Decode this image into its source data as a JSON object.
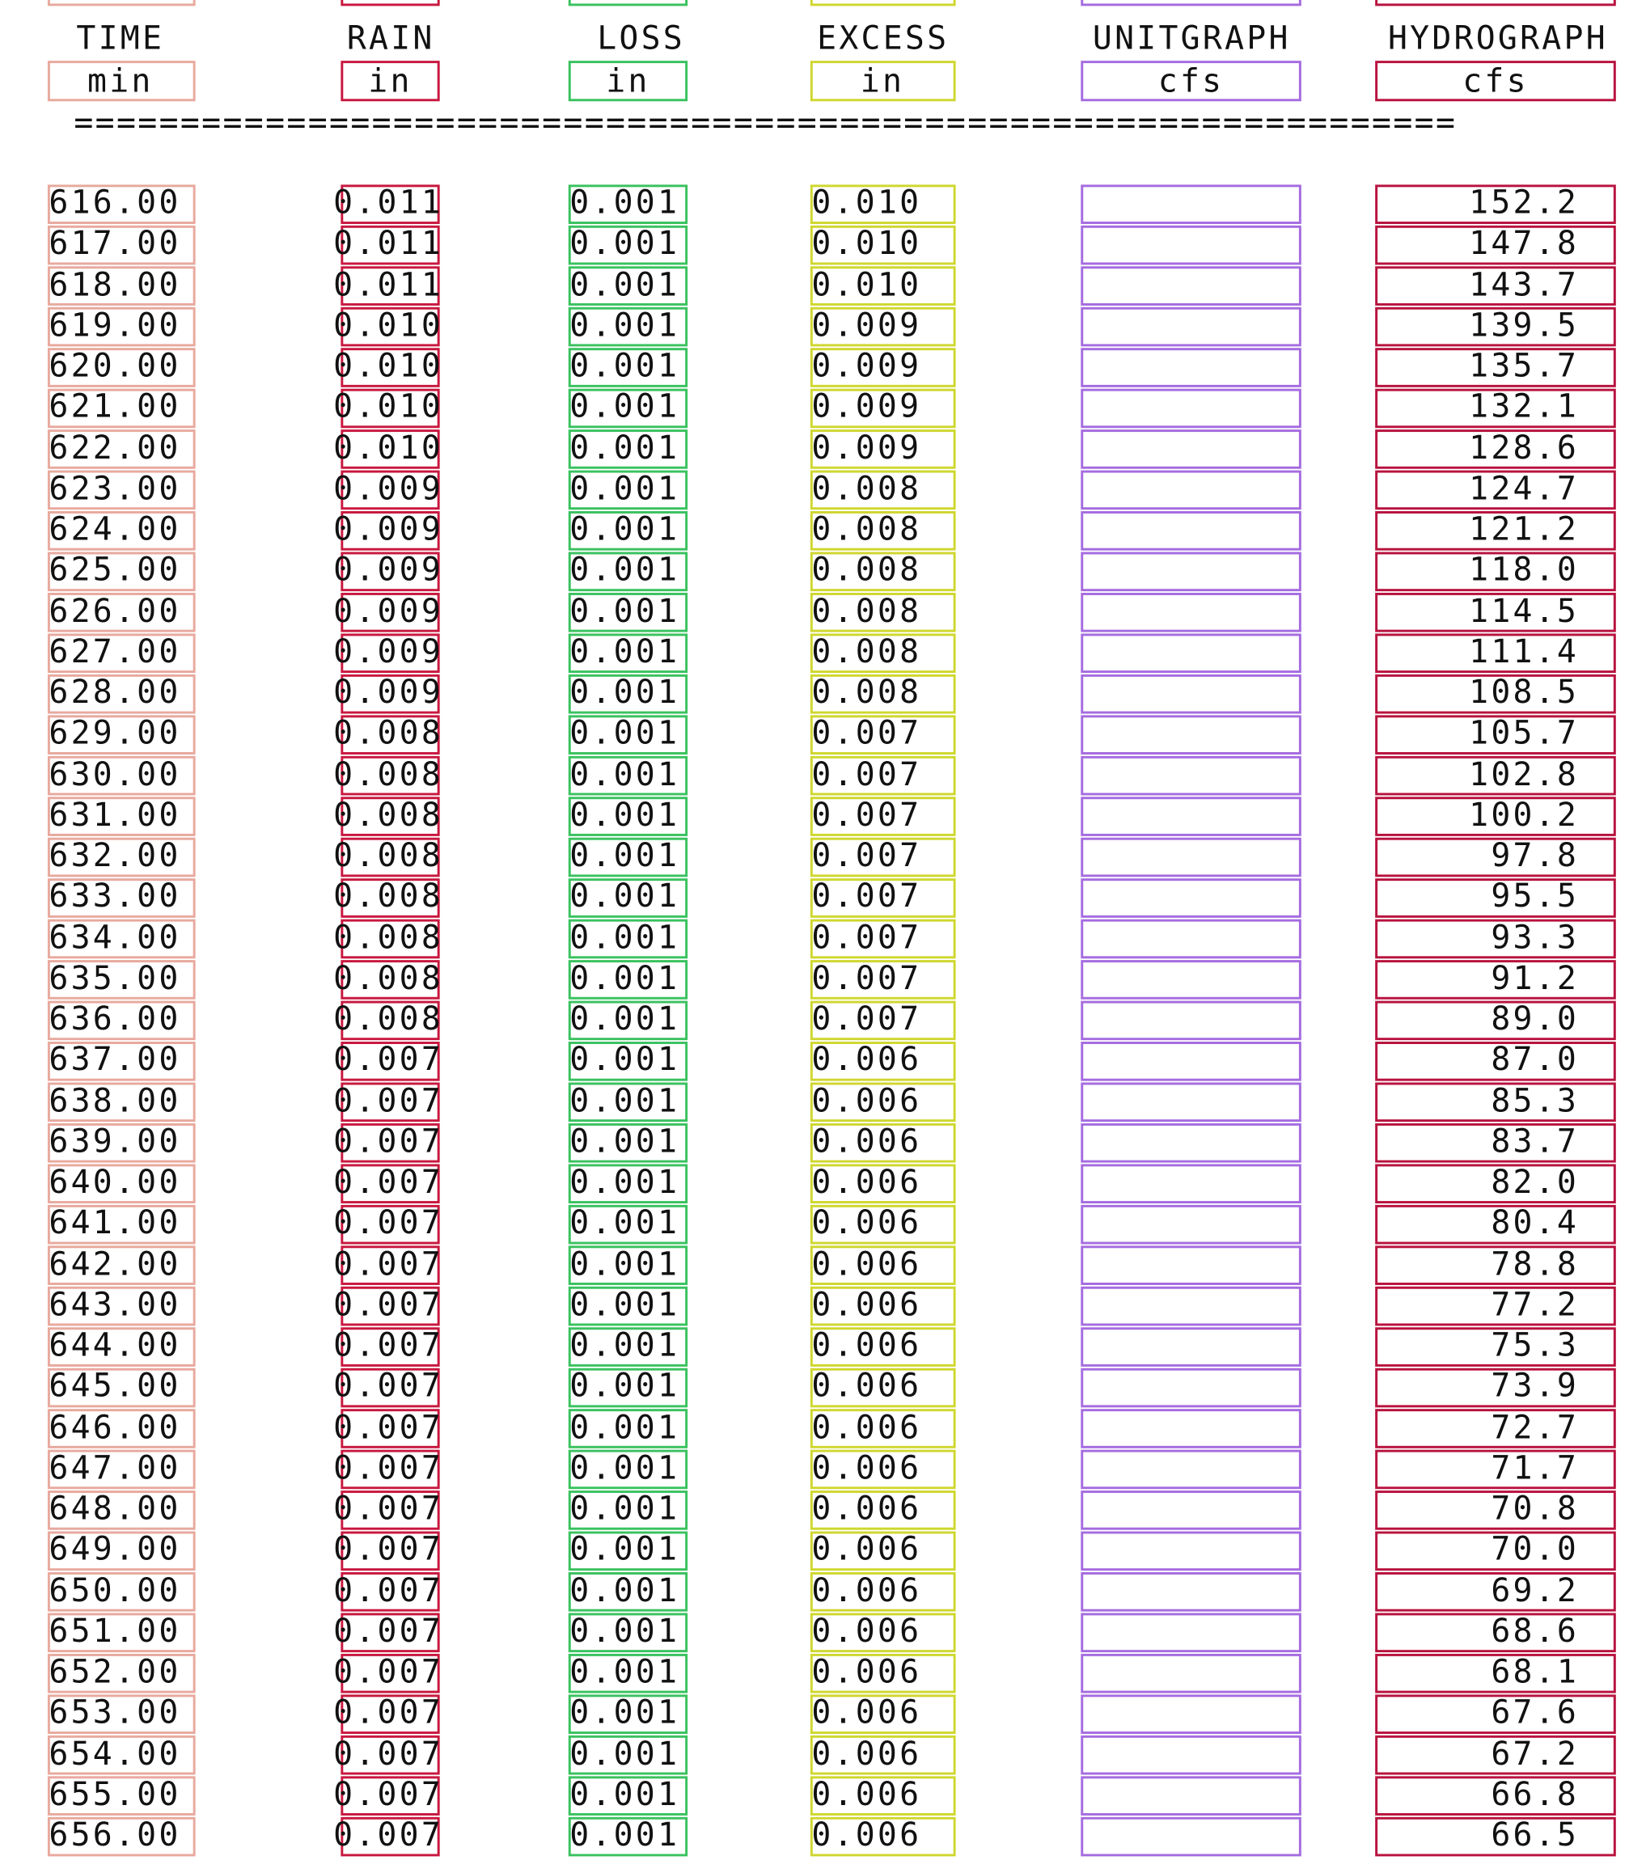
{
  "headers": {
    "time": "TIME",
    "rain": "RAIN",
    "loss": "LOSS",
    "excess": "EXCESS",
    "unitgraph": "UNITGRAPH",
    "hydrograph": "HYDROGRAPH"
  },
  "units": {
    "time": "min",
    "rain": "in",
    "loss": "in",
    "excess": "in",
    "unitgraph": "cfs",
    "hydrograph": "cfs"
  },
  "separator": "=================================================================",
  "rows": [
    {
      "time": "616.00",
      "rain": "0.011",
      "loss": "0.001",
      "excess": "0.010",
      "unitgraph": "",
      "hydrograph": "152.2"
    },
    {
      "time": "617.00",
      "rain": "0.011",
      "loss": "0.001",
      "excess": "0.010",
      "unitgraph": "",
      "hydrograph": "147.8"
    },
    {
      "time": "618.00",
      "rain": "0.011",
      "loss": "0.001",
      "excess": "0.010",
      "unitgraph": "",
      "hydrograph": "143.7"
    },
    {
      "time": "619.00",
      "rain": "0.010",
      "loss": "0.001",
      "excess": "0.009",
      "unitgraph": "",
      "hydrograph": "139.5"
    },
    {
      "time": "620.00",
      "rain": "0.010",
      "loss": "0.001",
      "excess": "0.009",
      "unitgraph": "",
      "hydrograph": "135.7"
    },
    {
      "time": "621.00",
      "rain": "0.010",
      "loss": "0.001",
      "excess": "0.009",
      "unitgraph": "",
      "hydrograph": "132.1"
    },
    {
      "time": "622.00",
      "rain": "0.010",
      "loss": "0.001",
      "excess": "0.009",
      "unitgraph": "",
      "hydrograph": "128.6"
    },
    {
      "time": "623.00",
      "rain": "0.009",
      "loss": "0.001",
      "excess": "0.008",
      "unitgraph": "",
      "hydrograph": "124.7"
    },
    {
      "time": "624.00",
      "rain": "0.009",
      "loss": "0.001",
      "excess": "0.008",
      "unitgraph": "",
      "hydrograph": "121.2"
    },
    {
      "time": "625.00",
      "rain": "0.009",
      "loss": "0.001",
      "excess": "0.008",
      "unitgraph": "",
      "hydrograph": "118.0"
    },
    {
      "time": "626.00",
      "rain": "0.009",
      "loss": "0.001",
      "excess": "0.008",
      "unitgraph": "",
      "hydrograph": "114.5"
    },
    {
      "time": "627.00",
      "rain": "0.009",
      "loss": "0.001",
      "excess": "0.008",
      "unitgraph": "",
      "hydrograph": "111.4"
    },
    {
      "time": "628.00",
      "rain": "0.009",
      "loss": "0.001",
      "excess": "0.008",
      "unitgraph": "",
      "hydrograph": "108.5"
    },
    {
      "time": "629.00",
      "rain": "0.008",
      "loss": "0.001",
      "excess": "0.007",
      "unitgraph": "",
      "hydrograph": "105.7"
    },
    {
      "time": "630.00",
      "rain": "0.008",
      "loss": "0.001",
      "excess": "0.007",
      "unitgraph": "",
      "hydrograph": "102.8"
    },
    {
      "time": "631.00",
      "rain": "0.008",
      "loss": "0.001",
      "excess": "0.007",
      "unitgraph": "",
      "hydrograph": "100.2"
    },
    {
      "time": "632.00",
      "rain": "0.008",
      "loss": "0.001",
      "excess": "0.007",
      "unitgraph": "",
      "hydrograph": "97.8"
    },
    {
      "time": "633.00",
      "rain": "0.008",
      "loss": "0.001",
      "excess": "0.007",
      "unitgraph": "",
      "hydrograph": "95.5"
    },
    {
      "time": "634.00",
      "rain": "0.008",
      "loss": "0.001",
      "excess": "0.007",
      "unitgraph": "",
      "hydrograph": "93.3"
    },
    {
      "time": "635.00",
      "rain": "0.008",
      "loss": "0.001",
      "excess": "0.007",
      "unitgraph": "",
      "hydrograph": "91.2"
    },
    {
      "time": "636.00",
      "rain": "0.008",
      "loss": "0.001",
      "excess": "0.007",
      "unitgraph": "",
      "hydrograph": "89.0"
    },
    {
      "time": "637.00",
      "rain": "0.007",
      "loss": "0.001",
      "excess": "0.006",
      "unitgraph": "",
      "hydrograph": "87.0"
    },
    {
      "time": "638.00",
      "rain": "0.007",
      "loss": "0.001",
      "excess": "0.006",
      "unitgraph": "",
      "hydrograph": "85.3"
    },
    {
      "time": "639.00",
      "rain": "0.007",
      "loss": "0.001",
      "excess": "0.006",
      "unitgraph": "",
      "hydrograph": "83.7"
    },
    {
      "time": "640.00",
      "rain": "0.007",
      "loss": "0.001",
      "excess": "0.006",
      "unitgraph": "",
      "hydrograph": "82.0"
    },
    {
      "time": "641.00",
      "rain": "0.007",
      "loss": "0.001",
      "excess": "0.006",
      "unitgraph": "",
      "hydrograph": "80.4"
    },
    {
      "time": "642.00",
      "rain": "0.007",
      "loss": "0.001",
      "excess": "0.006",
      "unitgraph": "",
      "hydrograph": "78.8"
    },
    {
      "time": "643.00",
      "rain": "0.007",
      "loss": "0.001",
      "excess": "0.006",
      "unitgraph": "",
      "hydrograph": "77.2"
    },
    {
      "time": "644.00",
      "rain": "0.007",
      "loss": "0.001",
      "excess": "0.006",
      "unitgraph": "",
      "hydrograph": "75.3"
    },
    {
      "time": "645.00",
      "rain": "0.007",
      "loss": "0.001",
      "excess": "0.006",
      "unitgraph": "",
      "hydrograph": "73.9"
    },
    {
      "time": "646.00",
      "rain": "0.007",
      "loss": "0.001",
      "excess": "0.006",
      "unitgraph": "",
      "hydrograph": "72.7"
    },
    {
      "time": "647.00",
      "rain": "0.007",
      "loss": "0.001",
      "excess": "0.006",
      "unitgraph": "",
      "hydrograph": "71.7"
    },
    {
      "time": "648.00",
      "rain": "0.007",
      "loss": "0.001",
      "excess": "0.006",
      "unitgraph": "",
      "hydrograph": "70.8"
    },
    {
      "time": "649.00",
      "rain": "0.007",
      "loss": "0.001",
      "excess": "0.006",
      "unitgraph": "",
      "hydrograph": "70.0"
    },
    {
      "time": "650.00",
      "rain": "0.007",
      "loss": "0.001",
      "excess": "0.006",
      "unitgraph": "",
      "hydrograph": "69.2"
    },
    {
      "time": "651.00",
      "rain": "0.007",
      "loss": "0.001",
      "excess": "0.006",
      "unitgraph": "",
      "hydrograph": "68.6"
    },
    {
      "time": "652.00",
      "rain": "0.007",
      "loss": "0.001",
      "excess": "0.006",
      "unitgraph": "",
      "hydrograph": "68.1"
    },
    {
      "time": "653.00",
      "rain": "0.007",
      "loss": "0.001",
      "excess": "0.006",
      "unitgraph": "",
      "hydrograph": "67.6"
    },
    {
      "time": "654.00",
      "rain": "0.007",
      "loss": "0.001",
      "excess": "0.006",
      "unitgraph": "",
      "hydrograph": "67.2"
    },
    {
      "time": "655.00",
      "rain": "0.007",
      "loss": "0.001",
      "excess": "0.006",
      "unitgraph": "",
      "hydrograph": "66.8"
    },
    {
      "time": "656.00",
      "rain": "0.007",
      "loss": "0.001",
      "excess": "0.006",
      "unitgraph": "",
      "hydrograph": "66.5"
    }
  ],
  "annotation_colors": {
    "time": "#e8a99e",
    "rain": "#c8183f",
    "loss": "#3ac25f",
    "excess": "#cfd72f",
    "unitgraph": "#a56ce0",
    "hydrograph": "#b8123e"
  }
}
